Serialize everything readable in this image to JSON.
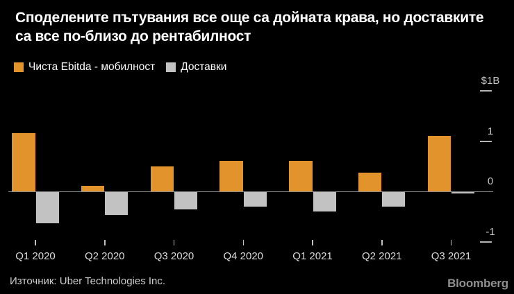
{
  "header": {
    "title": "Споделените пътувания все още са дойната крава, но доставките са все по-близо до рентабилност"
  },
  "chart_data": {
    "type": "bar",
    "title": "Споделените пътувания все още са дойната крава, но доставките са все по-близо до рентабилност",
    "categories": [
      "Q1 2020",
      "Q2 2020",
      "Q3 2020",
      "Q4 2020",
      "Q1 2021",
      "Q2 2021",
      "Q3 2021"
    ],
    "series": [
      {
        "name": "Чиста Ebitda - мобилност",
        "color": "#e2932c",
        "values": [
          1.16,
          0.11,
          0.5,
          0.61,
          0.61,
          0.37,
          1.1
        ]
      },
      {
        "name": "Доставки",
        "color": "#c2c2c2",
        "values": [
          -0.63,
          -0.47,
          -0.36,
          -0.3,
          -0.4,
          -0.3,
          -0.04
        ]
      }
    ],
    "xlabel": "",
    "ylabel": "$1B",
    "ylim": [
      -1.4,
      2.0
    ],
    "y_axis": {
      "unit_label": "$1B",
      "ticks": [
        {
          "label": "$1B",
          "value": 2,
          "dash": true
        },
        {
          "label": "1",
          "value": 1,
          "dash": true
        },
        {
          "label": "0",
          "value": 0,
          "dash": false
        },
        {
          "label": "-1",
          "value": -1,
          "dash": true
        }
      ]
    },
    "grid": false,
    "legend_position": "top-left",
    "background": "#000000",
    "axis_line_color": "#8a8a8a"
  },
  "footer": {
    "source": "Източник: Uber Technologies Inc.",
    "brand": "Bloomberg"
  }
}
